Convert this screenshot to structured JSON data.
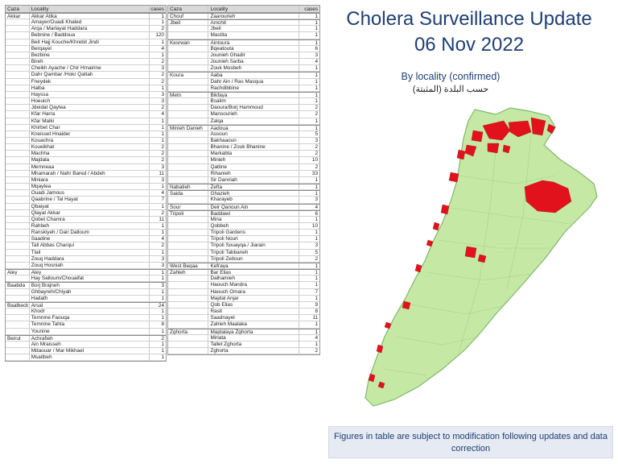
{
  "title": "Cholera Surveillance Update",
  "date": "06 Nov 2022",
  "subtitle": "By locality (confirmed)",
  "subtitle_ar": "حسب البلدة (المثبتة)",
  "footnote": "Figures in table are subject to modification following updates and data correction",
  "colors": {
    "title": "#1e3f74",
    "map_land": "#c5e9a5",
    "map_border": "#7fb86a",
    "map_cases": "#e2121c",
    "table_header": "#d9d9d9"
  },
  "table_headers": {
    "caza": "Caza",
    "locality": "Locality",
    "cases": "cases"
  },
  "left_table": [
    {
      "caza": "Akkar",
      "locality": "Akkar Atika",
      "cases": "1"
    },
    {
      "caza": "",
      "locality": "Amayer/Ouadi Khaled",
      "cases": "1"
    },
    {
      "caza": "",
      "locality": "Arqa / Marlayat Haddara",
      "cases": "2"
    },
    {
      "caza": "",
      "locality": "Bebnine / Baddoua",
      "cases": "120"
    },
    {
      "caza": "",
      "locality": "Beit Hajj Kouche/Khrebit Jindi",
      "cases": "1"
    },
    {
      "caza": "",
      "locality": "Berqayel",
      "cases": "4"
    },
    {
      "caza": "",
      "locality": "Bezbine",
      "cases": "1"
    },
    {
      "caza": "",
      "locality": "Bireh",
      "cases": "2"
    },
    {
      "caza": "",
      "locality": "Cheikh Ayache / Chir Hmairine",
      "cases": "3"
    },
    {
      "caza": "",
      "locality": "Dahr Qambar /Hokr Qattah",
      "cases": "2"
    },
    {
      "caza": "",
      "locality": "Fneydek",
      "cases": "2"
    },
    {
      "caza": "",
      "locality": "Halba",
      "cases": "1"
    },
    {
      "caza": "",
      "locality": "Hayssa",
      "cases": "3"
    },
    {
      "caza": "",
      "locality": "Hoeuich",
      "cases": "3"
    },
    {
      "caza": "",
      "locality": "Jdeidat Qaytea",
      "cases": "2"
    },
    {
      "caza": "",
      "locality": "Kfar Harra",
      "cases": "4"
    },
    {
      "caza": "",
      "locality": "Kfar Malki",
      "cases": "1"
    },
    {
      "caza": "",
      "locality": "Khirbet Char",
      "cases": "1"
    },
    {
      "caza": "",
      "locality": "Kneisset Hnaider",
      "cases": "1"
    },
    {
      "caza": "",
      "locality": "Kouachra",
      "cases": "1"
    },
    {
      "caza": "",
      "locality": "Koueikhat",
      "cases": "2"
    },
    {
      "caza": "",
      "locality": "Machha",
      "cases": "2"
    },
    {
      "caza": "",
      "locality": "Majdala",
      "cases": "2"
    },
    {
      "caza": "",
      "locality": "Memneaa",
      "cases": "3"
    },
    {
      "caza": "",
      "locality": "Mhamarah / Nahr Bared / Abdeh",
      "cases": "11"
    },
    {
      "caza": "",
      "locality": "Miniara",
      "cases": "3"
    },
    {
      "caza": "",
      "locality": "Mqaytea",
      "cases": "1"
    },
    {
      "caza": "",
      "locality": "Ouadi Jamous",
      "cases": "4"
    },
    {
      "caza": "",
      "locality": "Qaabrine / Tal Hayat",
      "cases": "7"
    },
    {
      "caza": "",
      "locality": "Qbaiyat",
      "cases": "1"
    },
    {
      "caza": "",
      "locality": "Qlayat Akkar",
      "cases": "2"
    },
    {
      "caza": "",
      "locality": "Qobet Chamra",
      "cases": "11"
    },
    {
      "caza": "",
      "locality": "Rahbeh",
      "cases": "1"
    },
    {
      "caza": "",
      "locality": "Ranskiyeh / Dair Dalloum",
      "cases": "1"
    },
    {
      "caza": "",
      "locality": "Saadine",
      "cases": "4"
    },
    {
      "caza": "",
      "locality": "Tall Abbas Charqui",
      "cases": "2"
    },
    {
      "caza": "",
      "locality": "Tlail",
      "cases": "1"
    },
    {
      "caza": "",
      "locality": "Zouq Haddara",
      "cases": "3"
    },
    {
      "caza": "",
      "locality": "Zouq Hosniah",
      "cases": "3"
    },
    {
      "caza": "Aley",
      "locality": "Aley",
      "cases": "1"
    },
    {
      "caza": "",
      "locality": "Hay Salloum/Chouaifat",
      "cases": "1"
    },
    {
      "caza": "Baabda",
      "locality": "Borj Brajneh",
      "cases": "3"
    },
    {
      "caza": "",
      "locality": "Ghbayreh/Chiyah",
      "cases": "1"
    },
    {
      "caza": "",
      "locality": "Hadath",
      "cases": "1"
    },
    {
      "caza": "Baalbeck",
      "locality": "Arsal",
      "cases": "24"
    },
    {
      "caza": "",
      "locality": "Khodr",
      "cases": "1"
    },
    {
      "caza": "",
      "locality": "Temnine Faouqa",
      "cases": "1"
    },
    {
      "caza": "",
      "locality": "Temnine Tahta",
      "cases": "8"
    },
    {
      "caza": "",
      "locality": "Younine",
      "cases": "1"
    },
    {
      "caza": "Beirut",
      "locality": "Achrafieh",
      "cases": "2"
    },
    {
      "caza": "",
      "locality": "Ain Mraisseh",
      "cases": "1"
    },
    {
      "caza": "",
      "locality": "Mdaouar / Mar Mikhael",
      "cases": "1"
    },
    {
      "caza": "",
      "locality": "Msaitbeh",
      "cases": "1"
    }
  ],
  "right_table": [
    {
      "caza": "Chouf",
      "locality": "Zaarourieh",
      "cases": "1"
    },
    {
      "caza": "Jbeil",
      "locality": "Amchit",
      "cases": "1"
    },
    {
      "caza": "",
      "locality": "Jbeil",
      "cases": "1"
    },
    {
      "caza": "",
      "locality": "Mastita",
      "cases": "1"
    },
    {
      "caza": "Kesrwan",
      "locality": "Aintoura",
      "cases": "1"
    },
    {
      "caza": "",
      "locality": "Bqeatouta",
      "cases": "6"
    },
    {
      "caza": "",
      "locality": "Jounieh Ghadir",
      "cases": "3"
    },
    {
      "caza": "",
      "locality": "Jounieh Sarba",
      "cases": "4"
    },
    {
      "caza": "",
      "locality": "Zouk Mosbeh",
      "cases": "1"
    },
    {
      "caza": "Koura",
      "locality": "Aaba",
      "cases": "1"
    },
    {
      "caza": "",
      "locality": "Dahr Ain / Ras Masqua",
      "cases": "1"
    },
    {
      "caza": "",
      "locality": "Rachdibbine",
      "cases": "1"
    },
    {
      "caza": "Metn",
      "locality": "Bikfaya",
      "cases": "1"
    },
    {
      "caza": "",
      "locality": "Bsalim",
      "cases": "1"
    },
    {
      "caza": "",
      "locality": "Daoura/Borj Hammoud",
      "cases": "2"
    },
    {
      "caza": "",
      "locality": "Mansourieh",
      "cases": "2"
    },
    {
      "caza": "",
      "locality": "Zalqa",
      "cases": "1"
    },
    {
      "caza": "Minieh Danieh",
      "locality": "Aadoua",
      "cases": "1"
    },
    {
      "caza": "",
      "locality": "Assoun",
      "cases": "5"
    },
    {
      "caza": "",
      "locality": "Bakhaaoun",
      "cases": "3"
    },
    {
      "caza": "",
      "locality": "Bhanine / Zouk Bhanine",
      "cases": "2"
    },
    {
      "caza": "",
      "locality": "Markabta",
      "cases": "2"
    },
    {
      "caza": "",
      "locality": "Minieh",
      "cases": "10"
    },
    {
      "caza": "",
      "locality": "Qattine",
      "cases": "2"
    },
    {
      "caza": "",
      "locality": "Rihanieh",
      "cases": "33"
    },
    {
      "caza": "",
      "locality": "Sir Danniah",
      "cases": "1"
    },
    {
      "caza": "Nabatieh",
      "locality": "Zefta",
      "cases": "1"
    },
    {
      "caza": "Saida",
      "locality": "Ghazieh",
      "cases": "1"
    },
    {
      "caza": "",
      "locality": "Kharayeb",
      "cases": "3"
    },
    {
      "caza": "Sour",
      "locality": "Deir Qanoun Ain",
      "cases": "4"
    },
    {
      "caza": "Tripoli",
      "locality": "Baddawi",
      "cases": "6"
    },
    {
      "caza": "",
      "locality": "Mina",
      "cases": "1"
    },
    {
      "caza": "",
      "locality": "Qobbeh",
      "cases": "10"
    },
    {
      "caza": "",
      "locality": "Tripoli Gardens",
      "cases": "1"
    },
    {
      "caza": "",
      "locality": "Tripoli Nouri",
      "cases": "1"
    },
    {
      "caza": "",
      "locality": "Tripoli Souayqa / Jiarain",
      "cases": "3"
    },
    {
      "caza": "",
      "locality": "Tripoli Tabbaneh",
      "cases": "5"
    },
    {
      "caza": "",
      "locality": "Tripoli Zeitoun",
      "cases": "2"
    },
    {
      "caza": "West Beqaa",
      "locality": "Kefraya",
      "cases": "1"
    },
    {
      "caza": "Zahleh",
      "locality": "Bar Elias",
      "cases": "1"
    },
    {
      "caza": "",
      "locality": "Dalhamieh",
      "cases": "1"
    },
    {
      "caza": "",
      "locality": "Haouch Mandra",
      "cases": "1"
    },
    {
      "caza": "",
      "locality": "Haouch Omara",
      "cases": "7"
    },
    {
      "caza": "",
      "locality": "Majdal Anjar",
      "cases": "1"
    },
    {
      "caza": "",
      "locality": "Qob Elias",
      "cases": "9"
    },
    {
      "caza": "",
      "locality": "Rasit",
      "cases": "8"
    },
    {
      "caza": "",
      "locality": "Saadnayel",
      "cases": "11"
    },
    {
      "caza": "",
      "locality": "Zahleh Maalaka",
      "cases": "1"
    },
    {
      "caza": "Zghorta",
      "locality": "Majdalaya Zghorta",
      "cases": "1"
    },
    {
      "caza": "",
      "locality": "Miriata",
      "cases": "4"
    },
    {
      "caza": "",
      "locality": "Tallet Zghorta",
      "cases": "1"
    },
    {
      "caza": "",
      "locality": "Zghorta",
      "cases": "2"
    }
  ]
}
